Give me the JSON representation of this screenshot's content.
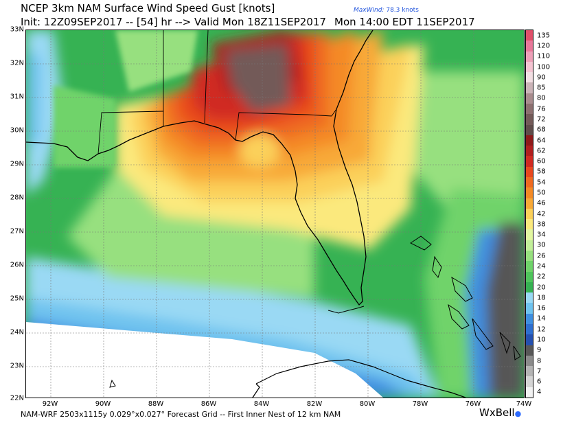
{
  "header": {
    "title": "NCEP 3km NAM Surface Wind Speed Gust [knots]",
    "init_line": "Init: 12Z09SEP2017 -- [54] hr --> Valid Mon 18Z11SEP2017",
    "valid_local": "Mon 14:00 EDT 11SEP2017",
    "maxwind_label": "MaxWind:",
    "maxwind_value": "78.3 knots"
  },
  "footer": {
    "grid_info": "NAM-WRF 2503x1115y 0.029°x0.027° Forecast Grid -- First Inner Nest of 12 km NAM",
    "logo": "WxBell"
  },
  "map": {
    "lat_labels": [
      "33N",
      "32N",
      "31N",
      "30N",
      "29N",
      "28N",
      "27N",
      "26N",
      "25N",
      "24N",
      "23N",
      "22N"
    ],
    "lon_labels": [
      "92W",
      "90W",
      "88W",
      "86W",
      "84W",
      "82W",
      "80W",
      "78W",
      "76W",
      "74W"
    ],
    "max_wind_knots": 78.3
  },
  "color_scale": {
    "labels": [
      "135",
      "120",
      "110",
      "100",
      "90",
      "85",
      "80",
      "76",
      "72",
      "68",
      "64",
      "62",
      "60",
      "58",
      "54",
      "50",
      "46",
      "42",
      "38",
      "34",
      "30",
      "26",
      "24",
      "22",
      "20",
      "18",
      "16",
      "14",
      "12",
      "10",
      "9",
      "8",
      "7",
      "6",
      "4"
    ],
    "colors": [
      "#e0506a",
      "#e8789a",
      "#eda0b8",
      "#f4c4d2",
      "#f2dfe3",
      "#cbb4b8",
      "#a98c8e",
      "#8d7070",
      "#735a58",
      "#5f4c4a",
      "#8e1a1a",
      "#b01f1f",
      "#d02a22",
      "#e8481f",
      "#ef6a21",
      "#f48a25",
      "#f8a937",
      "#fbd05a",
      "#fbe97d",
      "#e2f7a0",
      "#c2ef9a",
      "#97e07f",
      "#6fd36a",
      "#4fc55c",
      "#36b253",
      "#9ad9f4",
      "#6fc3ef",
      "#3f8fe0",
      "#2e6fd0",
      "#2450b0",
      "#575757",
      "#8b8b8b",
      "#b4b4b4",
      "#d4d4d4",
      "#f2f2f2"
    ]
  }
}
